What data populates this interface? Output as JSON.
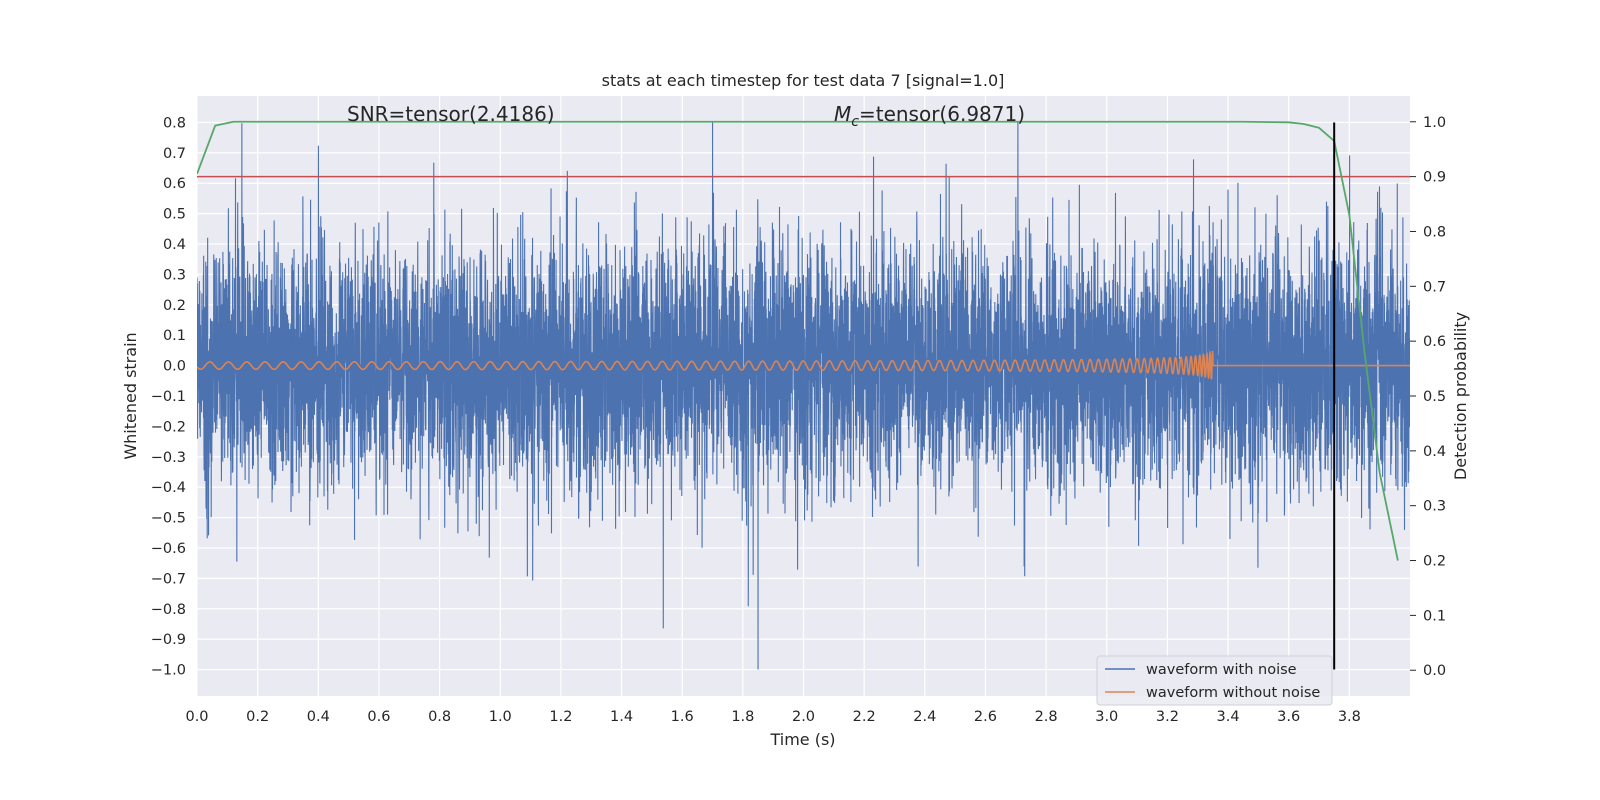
{
  "chart_data": {
    "type": "line",
    "title": "stats at each timestep for test data 7 [signal=1.0]",
    "xlabel": "Time (s)",
    "ylabel": "Whitened strain",
    "y2label": "Detection probability",
    "xlim": [
      0.0,
      4.0
    ],
    "ylim": [
      -1.087,
      0.887
    ],
    "y2lim": [
      -0.047,
      1.047
    ],
    "xticks": [
      "0.0",
      "0.2",
      "0.4",
      "0.6",
      "0.8",
      "1.0",
      "1.2",
      "1.4",
      "1.6",
      "1.8",
      "2.0",
      "2.2",
      "2.4",
      "2.6",
      "2.8",
      "3.0",
      "3.2",
      "3.4",
      "3.6",
      "3.8"
    ],
    "yticks": [
      "0.8",
      "0.7",
      "0.6",
      "0.5",
      "0.4",
      "0.3",
      "0.2",
      "0.1",
      "0.0",
      "−0.1",
      "−0.2",
      "−0.3",
      "−0.4",
      "−0.5",
      "−0.6",
      "−0.7",
      "−0.8",
      "−0.9",
      "−1.0"
    ],
    "y2ticks": [
      "1.0",
      "0.9",
      "0.8",
      "0.7",
      "0.6",
      "0.5",
      "0.4",
      "0.3",
      "0.2",
      "0.1",
      "0.0"
    ],
    "annotations": {
      "snr": "SNR=tensor(2.4186)",
      "mc_symbol": "M",
      "mc_subscript": "c",
      "mc_value": "=tensor(6.9871)"
    },
    "legend": {
      "position": "lower-right",
      "entries": [
        {
          "label": "waveform with noise",
          "color": "#4c72b0"
        },
        {
          "label": "waveform without noise",
          "color": "#dd8452"
        }
      ]
    },
    "series": [
      {
        "name": "waveform with noise",
        "axis": "left",
        "color": "#4c72b0",
        "kind": "noise",
        "sample_rate_hz": 2048,
        "x_end": 4.0,
        "approx_std": 0.2,
        "y_min": -1.0,
        "y_max": 0.8
      },
      {
        "name": "waveform without noise",
        "axis": "left",
        "color": "#dd8452",
        "kind": "chirp",
        "x_end": 4.0,
        "merger_time": 3.35,
        "start_amplitude": 0.012,
        "peak_amplitude": 0.06
      },
      {
        "axis": "right",
        "color": "#55a868",
        "x": [
          0.0,
          0.06,
          0.12,
          0.25,
          0.5,
          1.0,
          2.0,
          3.0,
          3.45,
          3.6,
          3.65,
          3.7,
          3.75,
          3.8,
          3.85,
          3.9,
          3.96
        ],
        "y": [
          0.905,
          0.993,
          1.0,
          1.0,
          1.0,
          1.0,
          1.0,
          1.0,
          1.0,
          0.999,
          0.996,
          0.989,
          0.965,
          0.83,
          0.58,
          0.36,
          0.2
        ]
      }
    ],
    "threshold": {
      "axis": "right",
      "value": 0.9,
      "color": "#c44e52"
    },
    "vline": {
      "x": 3.75,
      "y_from": -1.0,
      "y_to": 0.8,
      "axis": "left",
      "color": "#000000"
    },
    "grid": true,
    "style": {
      "background": "#eaeaf2",
      "grid_color": "#ffffff"
    }
  }
}
